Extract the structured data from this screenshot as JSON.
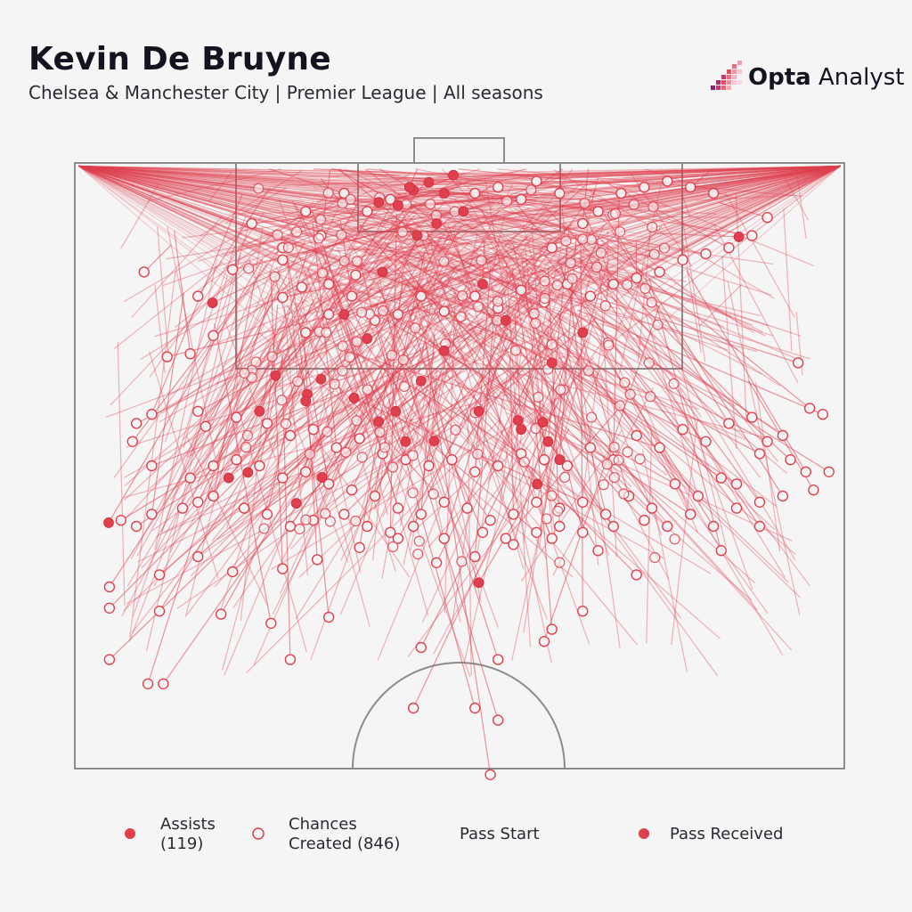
{
  "header": {
    "title": "Kevin De Bruyne",
    "subtitle": "Chelsea & Manchester City | Premier League | All seasons"
  },
  "logo": {
    "brand_bold": "Opta",
    "brand_light": " Analyst",
    "icon": "opta-bars-logo"
  },
  "legend": {
    "assists_line1": "Assists",
    "assists_line2": "(119)",
    "chances_line1": "Chances",
    "chances_line2": "Created (846)",
    "pass_start": "Pass Start",
    "pass_received": "Pass Received"
  },
  "colors": {
    "accent": "#e0404e",
    "pitch_lines": "#8c8c8c",
    "background": "#f5f5f5"
  },
  "chart_data": {
    "type": "scatter",
    "description_units": "pitch coordinates, x 0-100 left to right, y 0-100 from goal line (0) towards halfway line",
    "xlim": [
      0,
      100
    ],
    "ylim": [
      0,
      100
    ],
    "corner_passes": {
      "left_corner": [
        0.5,
        0.5
      ],
      "right_corner": [
        99.5,
        0.5
      ],
      "count_left": 160,
      "count_right": 180
    },
    "assists_sample": [
      [
        49.2,
        2
      ],
      [
        44,
        4.5
      ],
      [
        48,
        5
      ],
      [
        43.5,
        4
      ],
      [
        46,
        3.2
      ],
      [
        39.5,
        6.5
      ],
      [
        42,
        7
      ],
      [
        50.5,
        8
      ],
      [
        47,
        10
      ],
      [
        44.5,
        12
      ],
      [
        86.3,
        12.2
      ],
      [
        17.9,
        23.1
      ],
      [
        26.1,
        35.1
      ],
      [
        30.2,
        38.2
      ],
      [
        32,
        35.7
      ],
      [
        30,
        39.3
      ],
      [
        24,
        41
      ],
      [
        36.3,
        38.8
      ],
      [
        41.7,
        41
      ],
      [
        39.5,
        42.7
      ],
      [
        43,
        46
      ],
      [
        46.7,
        45.9
      ],
      [
        52.5,
        41
      ],
      [
        57.6,
        42.5
      ],
      [
        60.8,
        42.8
      ],
      [
        61.5,
        46
      ],
      [
        63,
        49
      ],
      [
        20,
        52
      ],
      [
        22.5,
        51.1
      ],
      [
        32.1,
        51.9
      ],
      [
        28.8,
        56.2
      ],
      [
        60.1,
        53
      ],
      [
        4.4,
        59.4
      ],
      [
        52.5,
        69.3
      ],
      [
        58,
        44
      ],
      [
        35,
        25
      ],
      [
        40,
        18
      ],
      [
        53,
        20
      ],
      [
        56,
        26
      ],
      [
        48,
        31
      ],
      [
        62,
        33
      ],
      [
        66,
        28
      ],
      [
        38,
        29
      ],
      [
        45,
        36
      ]
    ],
    "chances_sample": [
      [
        9,
        18
      ],
      [
        16,
        22
      ],
      [
        20.5,
        17.6
      ],
      [
        27,
        16
      ],
      [
        27,
        22.2
      ],
      [
        29.5,
        20.5
      ],
      [
        33,
        20
      ],
      [
        36.5,
        18.5
      ],
      [
        12,
        32
      ],
      [
        15,
        31.5
      ],
      [
        18,
        28.5
      ],
      [
        30,
        28
      ],
      [
        33,
        25
      ],
      [
        36,
        22
      ],
      [
        39,
        26
      ],
      [
        42,
        25
      ],
      [
        45,
        22
      ],
      [
        48,
        24.5
      ],
      [
        52,
        22
      ],
      [
        55,
        24
      ],
      [
        58,
        21
      ],
      [
        61,
        23
      ],
      [
        64,
        20
      ],
      [
        67,
        22
      ],
      [
        70,
        20
      ],
      [
        73,
        19
      ],
      [
        76,
        18
      ],
      [
        79,
        16
      ],
      [
        82,
        15
      ],
      [
        85,
        14
      ],
      [
        88,
        12
      ],
      [
        90,
        9
      ],
      [
        62,
        14
      ],
      [
        66,
        10
      ],
      [
        68,
        8
      ],
      [
        71,
        5
      ],
      [
        74,
        4
      ],
      [
        77,
        3
      ],
      [
        80,
        4
      ],
      [
        83,
        5
      ],
      [
        8,
        43
      ],
      [
        10,
        41.5
      ],
      [
        16,
        41
      ],
      [
        17,
        43.5
      ],
      [
        21,
        42
      ],
      [
        25,
        43
      ],
      [
        28,
        45
      ],
      [
        31,
        44
      ],
      [
        34,
        47
      ],
      [
        37,
        45.5
      ],
      [
        40,
        48
      ],
      [
        43,
        49
      ],
      [
        46,
        50
      ],
      [
        49,
        49
      ],
      [
        52,
        51
      ],
      [
        55,
        50
      ],
      [
        58,
        48
      ],
      [
        61,
        49
      ],
      [
        64,
        50
      ],
      [
        67,
        47
      ],
      [
        70,
        49
      ],
      [
        73,
        45
      ],
      [
        76,
        47
      ],
      [
        79,
        44
      ],
      [
        82,
        46
      ],
      [
        85,
        43
      ],
      [
        88,
        42
      ],
      [
        90,
        46
      ],
      [
        93,
        49
      ],
      [
        95,
        51
      ],
      [
        96,
        54
      ],
      [
        98,
        51
      ],
      [
        7.5,
        46
      ],
      [
        10,
        50
      ],
      [
        15,
        52
      ],
      [
        18,
        50
      ],
      [
        21,
        49
      ],
      [
        24,
        50
      ],
      [
        27,
        52
      ],
      [
        30,
        51
      ],
      [
        33,
        53
      ],
      [
        36,
        54
      ],
      [
        39,
        55
      ],
      [
        42,
        57
      ],
      [
        45,
        58
      ],
      [
        48,
        56
      ],
      [
        51,
        57
      ],
      [
        54,
        59
      ],
      [
        57,
        58
      ],
      [
        60,
        56
      ],
      [
        63,
        57
      ],
      [
        66,
        56
      ],
      [
        69,
        58
      ],
      [
        72,
        55
      ],
      [
        75,
        57
      ],
      [
        78,
        53
      ],
      [
        81,
        55
      ],
      [
        84,
        52
      ],
      [
        86,
        53
      ],
      [
        89,
        48
      ],
      [
        92,
        45
      ],
      [
        95.5,
        40.5
      ],
      [
        97.2,
        41.5
      ],
      [
        94,
        33
      ],
      [
        4.5,
        70
      ],
      [
        11,
        68
      ],
      [
        16,
        65
      ],
      [
        20.5,
        67.5
      ],
      [
        27,
        67
      ],
      [
        31.5,
        65.5
      ],
      [
        37,
        63.5
      ],
      [
        42,
        62
      ],
      [
        47,
        66
      ],
      [
        52,
        65
      ],
      [
        56,
        62
      ],
      [
        60,
        61
      ],
      [
        63,
        60
      ],
      [
        68,
        64
      ],
      [
        73,
        68
      ],
      [
        84,
        64
      ],
      [
        89,
        60
      ],
      [
        4.5,
        73.5
      ],
      [
        11,
        74
      ],
      [
        19,
        74.5
      ],
      [
        25.5,
        76
      ],
      [
        33,
        75
      ],
      [
        45,
        80
      ],
      [
        55,
        82
      ],
      [
        61,
        79
      ],
      [
        62,
        77
      ],
      [
        66,
        74
      ],
      [
        4.5,
        82
      ],
      [
        9.5,
        86
      ],
      [
        11.5,
        86
      ],
      [
        28,
        82
      ],
      [
        44,
        90
      ],
      [
        52,
        90
      ],
      [
        55,
        92
      ],
      [
        54,
        101
      ],
      [
        6,
        59
      ],
      [
        8,
        60
      ],
      [
        10,
        58
      ],
      [
        14,
        57
      ],
      [
        16,
        56
      ],
      [
        18,
        55
      ],
      [
        22,
        57
      ],
      [
        25,
        58
      ],
      [
        28,
        60
      ],
      [
        31,
        59
      ],
      [
        35,
        58
      ],
      [
        38,
        60
      ],
      [
        41,
        61
      ],
      [
        44,
        60
      ],
      [
        48,
        62
      ],
      [
        53,
        61
      ],
      [
        57,
        63
      ],
      [
        62,
        62
      ],
      [
        66,
        61
      ],
      [
        70,
        60
      ],
      [
        74,
        59
      ],
      [
        77,
        60
      ],
      [
        80,
        58
      ],
      [
        83,
        60
      ],
      [
        86,
        57
      ],
      [
        89,
        56
      ],
      [
        92,
        55
      ],
      [
        35,
        5
      ],
      [
        38,
        8
      ],
      [
        41,
        6
      ],
      [
        52,
        5
      ],
      [
        55,
        4
      ],
      [
        58,
        6
      ],
      [
        60,
        3
      ],
      [
        63,
        5
      ],
      [
        30,
        8
      ],
      [
        32,
        12
      ],
      [
        27,
        14
      ],
      [
        23,
        10
      ]
    ]
  }
}
